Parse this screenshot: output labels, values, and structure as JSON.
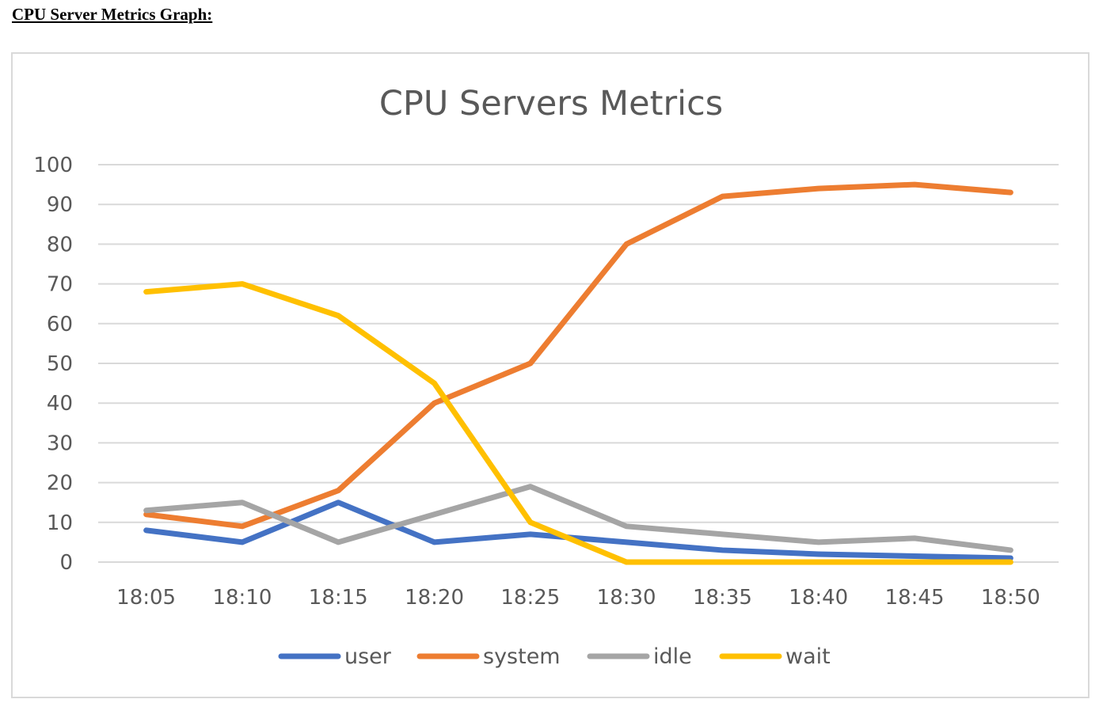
{
  "page": {
    "heading": "CPU Server Metrics Graph:"
  },
  "colors": {
    "grid": "#d9d9d9",
    "text": "#595959",
    "frame": "#d9d9d9"
  },
  "chart_data": {
    "type": "line",
    "title": "CPU Servers Metrics",
    "xlabel": "",
    "ylabel": "",
    "categories": [
      "18:05",
      "18:10",
      "18:15",
      "18:20",
      "18:25",
      "18:30",
      "18:35",
      "18:40",
      "18:45",
      "18:50"
    ],
    "ylim": [
      0,
      100
    ],
    "yticks": [
      0,
      10,
      20,
      30,
      40,
      50,
      60,
      70,
      80,
      90,
      100
    ],
    "grid": true,
    "legend_position": "bottom",
    "series": [
      {
        "name": "user",
        "color": "#4472c4",
        "values": [
          8,
          5,
          15,
          5,
          7,
          5,
          3,
          2,
          1.5,
          1
        ]
      },
      {
        "name": "system",
        "color": "#ed7d31",
        "values": [
          12,
          9,
          18,
          40,
          50,
          80,
          92,
          94,
          95,
          93
        ]
      },
      {
        "name": "idle",
        "color": "#a5a5a5",
        "values": [
          13,
          15,
          5,
          12,
          19,
          9,
          7,
          5,
          6,
          3
        ]
      },
      {
        "name": "wait",
        "color": "#ffc000",
        "values": [
          68,
          70,
          62,
          45,
          10,
          0,
          0,
          0,
          0,
          0
        ]
      }
    ]
  }
}
